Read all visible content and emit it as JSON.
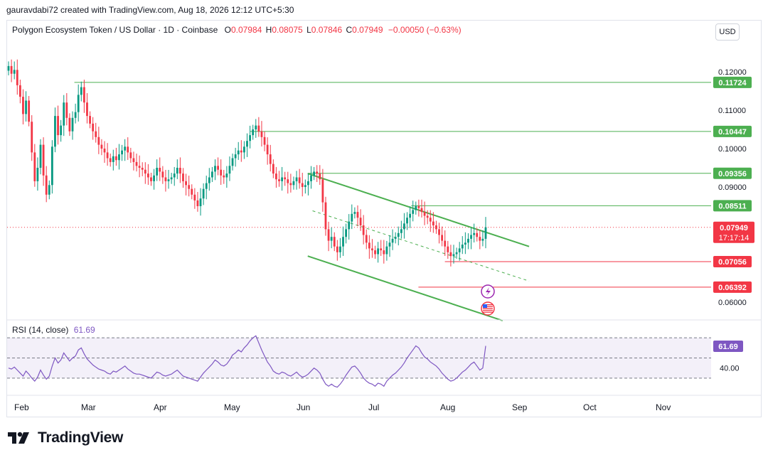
{
  "header": {
    "credit": "gauravdabi72 created with TradingView.com, Aug 18, 2026 12:12 UTC+5:30"
  },
  "legend": {
    "symbol": "Polygon Ecosystem Token / US Dollar · 1D · Coinbase",
    "o_label": "O",
    "o": "0.07984",
    "h_label": "H",
    "h": "0.08075",
    "l_label": "L",
    "l": "0.07846",
    "c_label": "C",
    "c": "0.07949",
    "change": "−0.00050 (−0.63%)"
  },
  "currency_button": "USD",
  "brand": {
    "name": "TradingView"
  },
  "colors": {
    "up": "#089981",
    "down": "#f23645",
    "support": "#4caf50",
    "resistance": "#f23645",
    "rsi": "#7e57c2",
    "channel": "#4caf50"
  },
  "chart_data": {
    "type": "candlestick",
    "y_axis": {
      "min": 0.055,
      "max": 0.125,
      "ticks": [
        "0.12000",
        "0.11000",
        "0.10000",
        "0.09000",
        "0.06000"
      ],
      "tick_values": [
        0.12,
        0.11,
        0.1,
        0.09,
        0.06
      ]
    },
    "x_axis": {
      "labels": [
        "Feb",
        "Mar",
        "Apr",
        "May",
        "Jun",
        "Jul",
        "Aug",
        "Sep",
        "Oct",
        "Nov"
      ]
    },
    "last_price": {
      "value": 0.07949,
      "label": "0.07949",
      "countdown": "17:17:14"
    },
    "horizontal_levels": [
      {
        "value": 0.11724,
        "label": "0.11724",
        "kind": "support",
        "start": "2026-02-26"
      },
      {
        "value": 0.10447,
        "label": "0.10447",
        "kind": "support",
        "start": "2026-05-10"
      },
      {
        "value": 0.09356,
        "label": "0.09356",
        "kind": "support",
        "start": "2026-06-03"
      },
      {
        "value": 0.08511,
        "label": "0.08511",
        "kind": "support",
        "start": "2026-07-16"
      },
      {
        "value": 0.07056,
        "label": "0.07056",
        "kind": "resistance",
        "start": "2026-07-30"
      },
      {
        "value": 0.06392,
        "label": "0.06392",
        "kind": "resistance",
        "start": "2026-07-19"
      }
    ],
    "channel": {
      "upper": [
        [
          "2026-06-03",
          0.0935
        ],
        [
          "2026-09-03",
          0.0745
        ]
      ],
      "lower": [
        [
          "2026-06-03",
          0.072
        ],
        [
          "2026-08-23",
          0.0552
        ]
      ],
      "mid": [
        [
          "2026-06-05",
          0.0838
        ],
        [
          "2026-09-03",
          0.0655
        ]
      ]
    },
    "candles_close": [
      0.1215,
      0.1195,
      0.1205,
      0.1165,
      0.1135,
      0.109,
      0.1125,
      0.107,
      0.099,
      0.0915,
      0.095,
      0.101,
      0.093,
      0.088,
      0.0905,
      0.1005,
      0.1085,
      0.1035,
      0.106,
      0.112,
      0.108,
      0.1045,
      0.108,
      0.1095,
      0.114,
      0.116,
      0.112,
      0.1085,
      0.1065,
      0.1045,
      0.103,
      0.101,
      0.1,
      0.099,
      0.0975,
      0.0965,
      0.098,
      0.097,
      0.0985,
      0.0995,
      0.1005,
      0.099,
      0.0975,
      0.0965,
      0.0955,
      0.095,
      0.0945,
      0.0935,
      0.0925,
      0.0915,
      0.093,
      0.095,
      0.094,
      0.0925,
      0.0915,
      0.092,
      0.0925,
      0.0935,
      0.095,
      0.0935,
      0.0915,
      0.0905,
      0.0895,
      0.088,
      0.0865,
      0.085,
      0.087,
      0.0895,
      0.091,
      0.0925,
      0.094,
      0.0955,
      0.0945,
      0.093,
      0.0925,
      0.0935,
      0.0955,
      0.0975,
      0.0985,
      0.0995,
      0.099,
      0.1005,
      0.102,
      0.1035,
      0.105,
      0.106,
      0.1045,
      0.103,
      0.101,
      0.0985,
      0.096,
      0.0935,
      0.092,
      0.0915,
      0.0925,
      0.092,
      0.091,
      0.0905,
      0.0915,
      0.0925,
      0.091,
      0.09,
      0.0905,
      0.0915,
      0.093,
      0.094,
      0.0935,
      0.092,
      0.086,
      0.079,
      0.076,
      0.077,
      0.0745,
      0.073,
      0.0745,
      0.077,
      0.079,
      0.081,
      0.083,
      0.0835,
      0.082,
      0.08,
      0.0775,
      0.0755,
      0.074,
      0.0735,
      0.0725,
      0.074,
      0.0735,
      0.0725,
      0.0745,
      0.0755,
      0.0765,
      0.077,
      0.078,
      0.079,
      0.0805,
      0.082,
      0.083,
      0.084,
      0.085,
      0.0845,
      0.0835,
      0.0825,
      0.082,
      0.081,
      0.08,
      0.079,
      0.0775,
      0.076,
      0.0745,
      0.073,
      0.072,
      0.0725,
      0.073,
      0.074,
      0.075,
      0.0755,
      0.0765,
      0.0775,
      0.078,
      0.077,
      0.076,
      0.0765,
      0.0795
    ],
    "rsi": {
      "label": "RSI (14, close)",
      "value": "61.69",
      "ticks": [
        "40.00"
      ],
      "tick_values": [
        40
      ],
      "range": [
        20,
        80
      ],
      "levels": [
        70,
        50,
        30
      ],
      "values": [
        40,
        39,
        41,
        38,
        35,
        32,
        37,
        34,
        30,
        27,
        31,
        38,
        33,
        29,
        32,
        42,
        50,
        45,
        48,
        55,
        51,
        47,
        50,
        52,
        58,
        60,
        54,
        49,
        46,
        43,
        41,
        39,
        38,
        37,
        35,
        34,
        37,
        36,
        38,
        40,
        42,
        39,
        37,
        35,
        34,
        34,
        33,
        32,
        31,
        30,
        33,
        36,
        35,
        33,
        32,
        33,
        34,
        36,
        38,
        35,
        32,
        31,
        30,
        29,
        28,
        27,
        31,
        35,
        38,
        41,
        44,
        48,
        46,
        43,
        42,
        44,
        48,
        53,
        55,
        58,
        56,
        60,
        63,
        67,
        70,
        72,
        65,
        58,
        52,
        46,
        42,
        37,
        35,
        34,
        36,
        35,
        33,
        32,
        34,
        36,
        33,
        31,
        32,
        34,
        37,
        40,
        38,
        35,
        29,
        24,
        22,
        24,
        22,
        21,
        24,
        28,
        33,
        37,
        41,
        42,
        39,
        35,
        30,
        27,
        25,
        24,
        22,
        25,
        24,
        22,
        27,
        30,
        33,
        35,
        38,
        41,
        45,
        50,
        54,
        58,
        62,
        60,
        55,
        51,
        49,
        46,
        44,
        42,
        39,
        35,
        32,
        29,
        27,
        28,
        30,
        33,
        36,
        38,
        41,
        44,
        46,
        42,
        38,
        40,
        62
      ]
    }
  }
}
